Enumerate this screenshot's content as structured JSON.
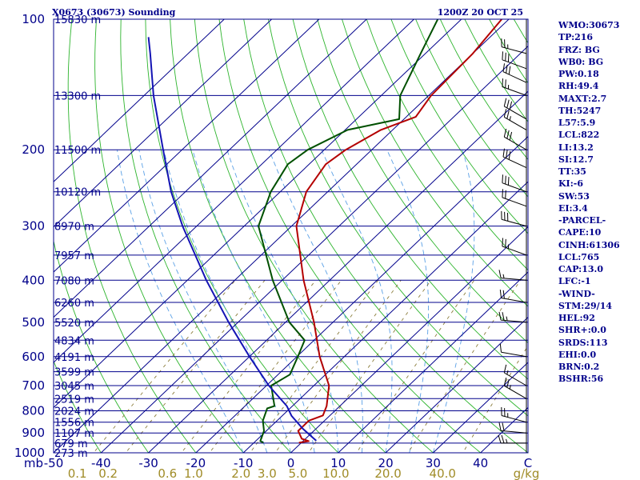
{
  "header": {
    "station": "X0673 (30673) Sounding",
    "time": "1200Z 20 OCT 25"
  },
  "indices": [
    "WMO:30673",
    "TP:216",
    "FRZ: BG",
    "WB0: BG",
    "PW:0.18",
    "RH:49.4",
    "MAXT:2.7",
    "TH:5247",
    "L57:5.9",
    "LCL:822",
    "LI:13.2",
    "SI:12.7",
    "TT:35",
    "KI:-6",
    "SW:53",
    "EI:3.4",
    "-PARCEL-",
    "CAPE:10",
    "CINH:61306",
    "LCL:765",
    "CAP:13.0",
    "LFC:-1",
    "-WIND-",
    "STM:29/14",
    "HEL:92",
    "SHR+:0.0",
    "SRDS:113",
    "EHI:0.0",
    "BRN:0.2",
    "BSHR:56"
  ],
  "colors": {
    "isobar": "#00008b",
    "isotherm": "#00008b",
    "dry_adiabat": "#2db42d",
    "moist_adiabat": "#5aa0e6",
    "mixing_ratio": "#8b7d3c",
    "temperature": "#b40000",
    "dewpoint": "#005000",
    "parcel": "#1414b4",
    "wind": "#000000",
    "axis_text": "#00008b",
    "mr_text": "#a08c28"
  },
  "chart_data": {
    "type": "line",
    "title": "X0673 (30673) Sounding",
    "subtitle": "1200Z 20 OCT 25",
    "xlabel": "C",
    "ylabel": "mb",
    "xlim": [
      -50,
      50
    ],
    "ylim": [
      1000,
      100
    ],
    "pressure_ticks": [
      {
        "p": 100,
        "label": "100"
      },
      {
        "p": 200,
        "label": "200"
      },
      {
        "p": 300,
        "label": "300"
      },
      {
        "p": 400,
        "label": "400"
      },
      {
        "p": 500,
        "label": "500"
      },
      {
        "p": 600,
        "label": "600"
      },
      {
        "p": 700,
        "label": "700"
      },
      {
        "p": 800,
        "label": "800"
      },
      {
        "p": 900,
        "label": "900"
      },
      {
        "p": 1000,
        "label": "1000"
      }
    ],
    "temperature_ticks": [
      {
        "t": -50,
        "label": "-50"
      },
      {
        "t": -40,
        "label": "-40"
      },
      {
        "t": -30,
        "label": "-30"
      },
      {
        "t": -20,
        "label": "-20"
      },
      {
        "t": -10,
        "label": "-10"
      },
      {
        "t": 0,
        "label": "0"
      },
      {
        "t": 10,
        "label": "10"
      },
      {
        "t": 20,
        "label": "20"
      },
      {
        "t": 30,
        "label": "30"
      },
      {
        "t": 40,
        "label": "40"
      },
      {
        "t": 50,
        "label": "C"
      }
    ],
    "mb_label": "mb",
    "mixing_ratio_labels": [
      {
        "t": -45,
        "label": "0.1"
      },
      {
        "t": -38.5,
        "label": "0.2"
      },
      {
        "t": -26,
        "label": "0.6"
      },
      {
        "t": -20.5,
        "label": "1.0"
      },
      {
        "t": -10.5,
        "label": "2.0"
      },
      {
        "t": -5,
        "label": "3.0"
      },
      {
        "t": 1.5,
        "label": "5.0"
      },
      {
        "t": 9.5,
        "label": "10.0"
      },
      {
        "t": 20.5,
        "label": "20.0"
      },
      {
        "t": 32,
        "label": "40.0"
      }
    ],
    "units_label": "g/kg",
    "height_labels": [
      {
        "p": 100,
        "label": "15830 m"
      },
      {
        "p": 150,
        "label": "13300 m"
      },
      {
        "p": 200,
        "label": "11500 m"
      },
      {
        "p": 250,
        "label": "10120 m"
      },
      {
        "p": 300,
        "label": "8970 m"
      },
      {
        "p": 350,
        "label": "7957 m"
      },
      {
        "p": 400,
        "label": "7080 m"
      },
      {
        "p": 450,
        "label": "6260 m"
      },
      {
        "p": 500,
        "label": "5520 m"
      },
      {
        "p": 550,
        "label": "4834 m"
      },
      {
        "p": 600,
        "label": "4191 m"
      },
      {
        "p": 650,
        "label": "3599 m"
      },
      {
        "p": 700,
        "label": "3045 m"
      },
      {
        "p": 750,
        "label": "2519 m"
      },
      {
        "p": 800,
        "label": "2024 m"
      },
      {
        "p": 850,
        "label": "1556 m"
      },
      {
        "p": 900,
        "label": "1107 m"
      },
      {
        "p": 950,
        "label": "679 m"
      },
      {
        "p": 1000,
        "label": "273 m"
      }
    ],
    "isotherms_c": [
      -110,
      -100,
      -90,
      -80,
      -70,
      -60,
      -50,
      -40,
      -30,
      -20,
      -10,
      0,
      10,
      20,
      30,
      40
    ],
    "dry_adiabats_c": [
      -40,
      -30,
      -20,
      -10,
      0,
      10,
      20,
      30,
      40,
      50,
      60,
      70,
      80,
      90,
      100,
      110,
      120,
      130,
      140,
      150,
      160,
      170
    ],
    "moist_adiabats_c": [
      -10,
      -5,
      0,
      5,
      10,
      15,
      20,
      25,
      30
    ],
    "mixing_ratios_gkg": [
      0.1,
      0.2,
      0.6,
      1.0,
      2.0,
      3.0,
      5.0,
      10.0,
      20.0,
      40.0
    ],
    "series": [
      {
        "name": "temperature",
        "color": "#b40000",
        "points": [
          {
            "p": 948,
            "t": -0.5
          },
          {
            "p": 940,
            "t": 1.2
          },
          {
            "p": 928,
            "t": -0.8
          },
          {
            "p": 890,
            "t": -3.3
          },
          {
            "p": 843,
            "t": -3.3
          },
          {
            "p": 820,
            "t": -1.5
          },
          {
            "p": 780,
            "t": -2.8
          },
          {
            "p": 700,
            "t": -6.8
          },
          {
            "p": 600,
            "t": -15.2
          },
          {
            "p": 500,
            "t": -24.0
          },
          {
            "p": 400,
            "t": -35.5
          },
          {
            "p": 300,
            "t": -49.0
          },
          {
            "p": 250,
            "t": -54.5
          },
          {
            "p": 216,
            "t": -56.5
          },
          {
            "p": 200,
            "t": -55.5
          },
          {
            "p": 180,
            "t": -52.5
          },
          {
            "p": 168,
            "t": -48.0
          },
          {
            "p": 150,
            "t": -49.5
          },
          {
            "p": 120,
            "t": -50.0
          },
          {
            "p": 100,
            "t": -51.5
          }
        ]
      },
      {
        "name": "dewpoint",
        "color": "#005000",
        "points": [
          {
            "p": 948,
            "t": -8.0
          },
          {
            "p": 940,
            "t": -9.0
          },
          {
            "p": 890,
            "t": -10.5
          },
          {
            "p": 843,
            "t": -13.0
          },
          {
            "p": 790,
            "t": -14.8
          },
          {
            "p": 780,
            "t": -13.8
          },
          {
            "p": 700,
            "t": -19.0
          },
          {
            "p": 660,
            "t": -17.5
          },
          {
            "p": 600,
            "t": -19.8
          },
          {
            "p": 550,
            "t": -22.0
          },
          {
            "p": 500,
            "t": -29.2
          },
          {
            "p": 400,
            "t": -42.0
          },
          {
            "p": 300,
            "t": -57.0
          },
          {
            "p": 250,
            "t": -62.0
          },
          {
            "p": 216,
            "t": -64.5
          },
          {
            "p": 200,
            "t": -63.5
          },
          {
            "p": 180,
            "t": -59.5
          },
          {
            "p": 170,
            "t": -51.0
          },
          {
            "p": 150,
            "t": -56.0
          },
          {
            "p": 120,
            "t": -61.0
          },
          {
            "p": 100,
            "t": -65.0
          }
        ]
      },
      {
        "name": "parcel",
        "color": "#1414b4",
        "points": [
          {
            "p": 938,
            "t": 2.7
          },
          {
            "p": 880,
            "t": -2.8
          },
          {
            "p": 822,
            "t": -8.0
          },
          {
            "p": 780,
            "t": -11.2
          },
          {
            "p": 700,
            "t": -19.5
          },
          {
            "p": 600,
            "t": -30.0
          },
          {
            "p": 500,
            "t": -42.0
          },
          {
            "p": 400,
            "t": -56.0
          },
          {
            "p": 300,
            "t": -73.0
          },
          {
            "p": 250,
            "t": -83.0
          },
          {
            "p": 200,
            "t": -94.0
          },
          {
            "p": 150,
            "t": -108.0
          },
          {
            "p": 120,
            "t": -118.0
          },
          {
            "p": 110,
            "t": -122.0
          }
        ]
      }
    ],
    "wind_barbs": [
      {
        "p": 950,
        "dir": 270,
        "kt": 25
      },
      {
        "p": 900,
        "dir": 275,
        "kt": 20
      },
      {
        "p": 850,
        "dir": 285,
        "kt": 25
      },
      {
        "p": 750,
        "dir": 300,
        "kt": 25
      },
      {
        "p": 700,
        "dir": 300,
        "kt": 15
      },
      {
        "p": 600,
        "dir": 280,
        "kt": 10
      },
      {
        "p": 500,
        "dir": 275,
        "kt": 25
      },
      {
        "p": 450,
        "dir": 280,
        "kt": 20
      },
      {
        "p": 400,
        "dir": 275,
        "kt": 15
      },
      {
        "p": 350,
        "dir": 290,
        "kt": 25
      },
      {
        "p": 300,
        "dir": 285,
        "kt": 30
      },
      {
        "p": 270,
        "dir": 290,
        "kt": 20
      },
      {
        "p": 250,
        "dir": 290,
        "kt": 30
      },
      {
        "p": 220,
        "dir": 295,
        "kt": 30
      },
      {
        "p": 200,
        "dir": 300,
        "kt": 30
      },
      {
        "p": 180,
        "dir": 300,
        "kt": 25
      },
      {
        "p": 170,
        "dir": 300,
        "kt": 30
      },
      {
        "p": 150,
        "dir": 290,
        "kt": 25
      },
      {
        "p": 140,
        "dir": 295,
        "kt": 30
      },
      {
        "p": 130,
        "dir": 290,
        "kt": 30
      },
      {
        "p": 120,
        "dir": 285,
        "kt": 25
      }
    ]
  }
}
